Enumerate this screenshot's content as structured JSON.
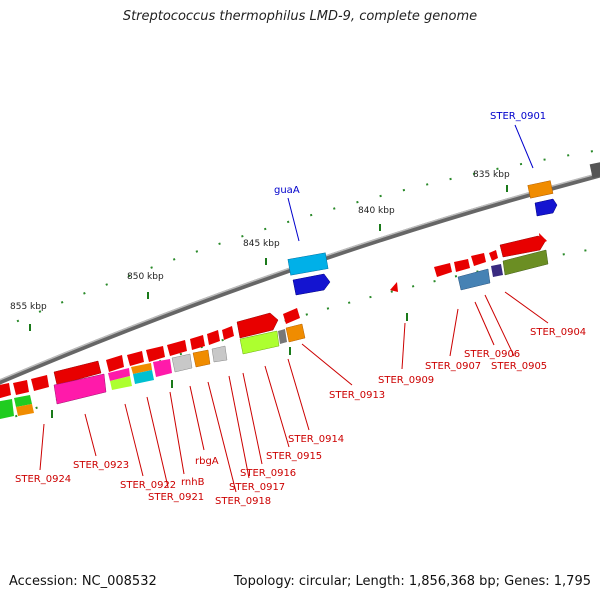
{
  "title": "Streptococcus thermophilus LMD-9, complete genome",
  "footer": {
    "accession": "Accession: NC_008532",
    "summary": "Topology: circular; Length: 1,856,368 bp; Genes: 1,795"
  },
  "scale_labels": [
    "835 kbp",
    "840 kbp",
    "845 kbp",
    "850 kbp",
    "855 kbp"
  ],
  "gene_labels": {
    "STER_0901": "STER_0901",
    "guaA": "guaA",
    "STER_0904": "STER_0904",
    "STER_0905": "STER_0905",
    "STER_0906": "STER_0906",
    "STER_0907": "STER_0907",
    "STER_0909": "STER_0909",
    "STER_0913": "STER_0913",
    "STER_0914": "STER_0914",
    "STER_0915": "STER_0915",
    "STER_0916": "STER_0916",
    "STER_0917": "STER_0917",
    "STER_0918": "STER_0918",
    "rbgA": "rbgA",
    "rnhB": "rnhB",
    "STER_0921": "STER_0921",
    "STER_0922": "STER_0922",
    "STER_0923": "STER_0923",
    "STER_0924": "STER_0924"
  },
  "colors": {
    "label_red": "#cc0000",
    "label_blue": "#0000cc",
    "backbone": "#777777",
    "tick": "#228822"
  }
}
